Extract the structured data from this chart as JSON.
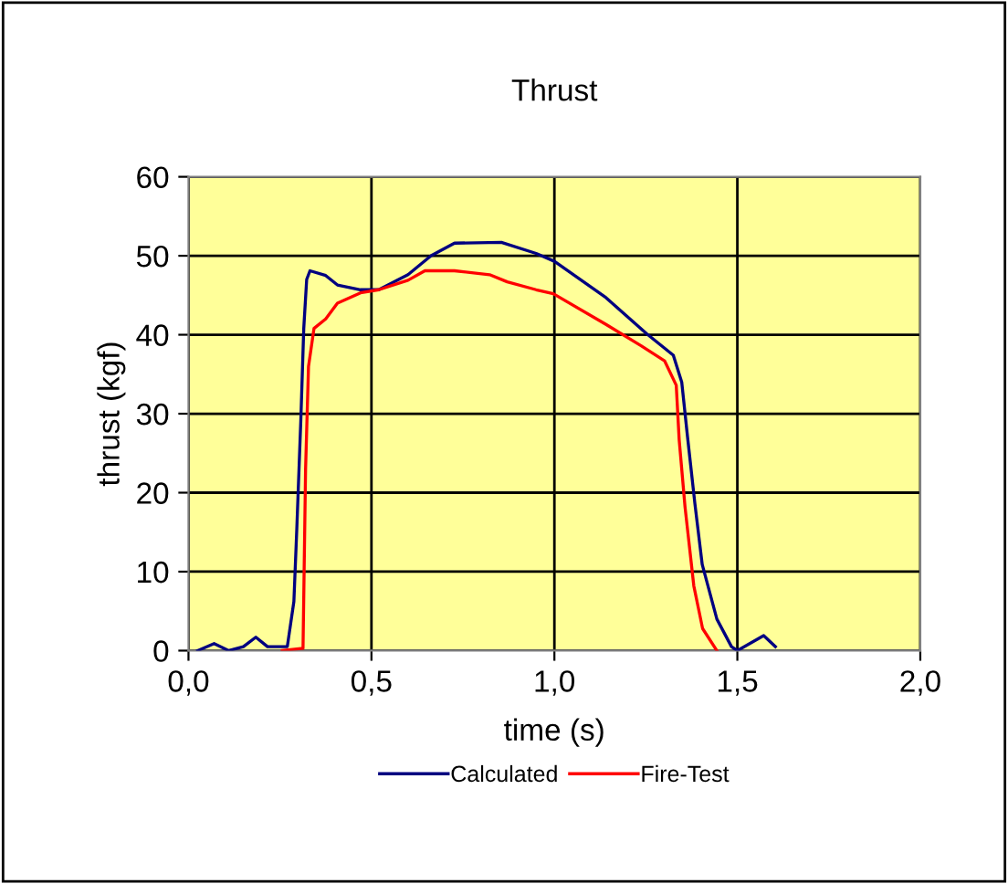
{
  "chart_data": {
    "type": "line",
    "title": "Thrust",
    "xlabel": "time (s)",
    "ylabel": "thrust (kgf)",
    "xlim": [
      0,
      2
    ],
    "ylim": [
      0,
      60
    ],
    "xticks": [
      {
        "value": 0,
        "label": "0,0"
      },
      {
        "value": 0.5,
        "label": "0,5"
      },
      {
        "value": 1,
        "label": "1,0"
      },
      {
        "value": 1.5,
        "label": "1,5"
      },
      {
        "value": 2,
        "label": "2,0"
      }
    ],
    "yticks": [
      0,
      10,
      20,
      30,
      40,
      50,
      60
    ],
    "grid": true,
    "legend": "bottom",
    "marker": "none",
    "line_style": "solid",
    "series": [
      {
        "name": "Calculated",
        "color": "#000080",
        "x": [
          0.025,
          0.07,
          0.11,
          0.15,
          0.184,
          0.216,
          0.27,
          0.288,
          0.296,
          0.307,
          0.315,
          0.323,
          0.332,
          0.375,
          0.407,
          0.47,
          0.52,
          0.6,
          0.663,
          0.727,
          0.855,
          0.95,
          1.0,
          1.141,
          1.253,
          1.325,
          1.348,
          1.364,
          1.384,
          1.404,
          1.444,
          1.484,
          1.5,
          1.572,
          1.604
        ],
        "values": [
          0,
          0.9,
          0,
          0.5,
          1.7,
          0.5,
          0.5,
          6.2,
          15.4,
          29.2,
          40.8,
          47,
          48.1,
          47.5,
          46.3,
          45.7,
          45.7,
          47.6,
          50,
          51.6,
          51.7,
          50.3,
          49.3,
          44.7,
          40.1,
          37.4,
          34,
          27,
          18.6,
          10.9,
          4,
          0.5,
          0,
          1.9,
          0.5
        ]
      },
      {
        "name": "Fire-Test",
        "color": "#ff0000",
        "x": [
          0.256,
          0.313,
          0.32,
          0.328,
          0.343,
          0.375,
          0.407,
          0.47,
          0.52,
          0.6,
          0.646,
          0.727,
          0.823,
          0.871,
          0.95,
          0.997,
          1.141,
          1.237,
          1.301,
          1.333,
          1.341,
          1.357,
          1.381,
          1.405,
          1.444
        ],
        "values": [
          0,
          0.3,
          23,
          36,
          40.8,
          42,
          44,
          45.3,
          45.7,
          46.9,
          48.1,
          48.1,
          47.6,
          46.7,
          45.7,
          45.2,
          41.3,
          38.6,
          36.7,
          33.6,
          26.7,
          18.2,
          8.2,
          2.8,
          0
        ]
      }
    ]
  }
}
